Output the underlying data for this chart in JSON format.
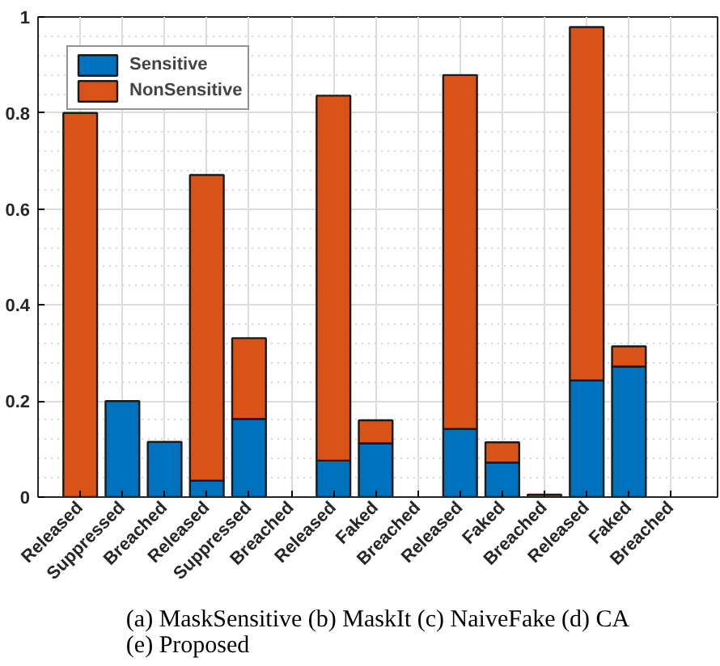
{
  "chart_data": {
    "type": "bar",
    "stacked": true,
    "categories": [
      "Released",
      "Suppressed",
      "Breached",
      "Released",
      "Suppressed",
      "Breached",
      "Released",
      "Faked",
      "Breached",
      "Released",
      "Faked",
      "Breached",
      "Released",
      "Faked",
      "Breached"
    ],
    "series": [
      {
        "name": "Sensitive",
        "color": "#0072bd",
        "values": [
          0,
          0.2,
          0.115,
          0.034,
          0.163,
          null,
          0.076,
          0.112,
          null,
          0.142,
          0.072,
          0,
          0.243,
          0.272,
          null
        ]
      },
      {
        "name": "NonSensitive",
        "color": "#d95319",
        "values": [
          0.8,
          0,
          0,
          0.637,
          0.168,
          0,
          0.76,
          0.048,
          0,
          0.737,
          0.042,
          0.005,
          0.736,
          0.042,
          0
        ]
      }
    ],
    "ylim": [
      0,
      1
    ],
    "yticks": [
      0,
      0.2,
      0.4,
      0.6,
      0.8,
      1
    ],
    "grid": true,
    "legend": "top left",
    "annotations": [
      "(a) MaskSensitive (b) MaskIt (c) NaiveFake (d) CA (e) Proposed"
    ]
  }
}
